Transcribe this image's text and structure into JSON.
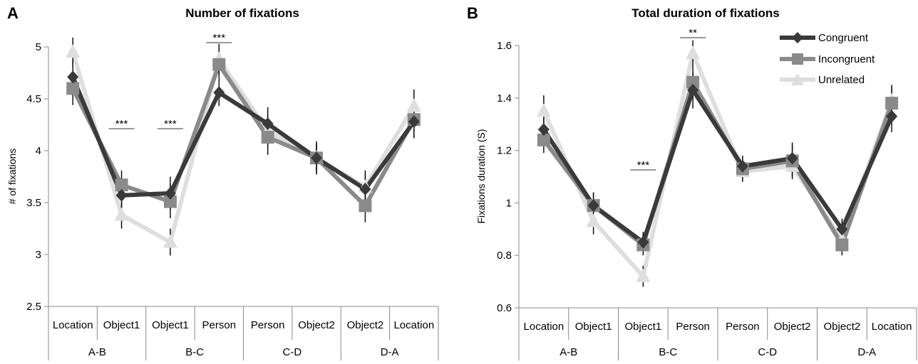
{
  "chart_data": [
    {
      "type": "line",
      "panel": "A",
      "title": "Number of fixations",
      "ylabel": "# of fixations",
      "xlabel": "",
      "ylim": [
        2.5,
        5
      ],
      "yticks": [
        "2.5",
        "3",
        "3.5",
        "4",
        "4.5",
        "5"
      ],
      "ytick_values": [
        2.5,
        3,
        3.5,
        4,
        4.5,
        5
      ],
      "categories": [
        "Location",
        "Object1",
        "Object1",
        "Person",
        "Person",
        "Object2",
        "Object2",
        "Location"
      ],
      "groups": [
        "A-B",
        "B-C",
        "C-D",
        "D-A"
      ],
      "series": [
        {
          "name": "Congruent",
          "color": "#3a3a3a",
          "marker": "diamond",
          "values": [
            4.71,
            3.57,
            3.59,
            4.56,
            4.26,
            3.93,
            3.63,
            4.28
          ],
          "errors": [
            0.17,
            0.14,
            0.16,
            0.13,
            0.16,
            0.12,
            0.15,
            0.16
          ]
        },
        {
          "name": "Incongruent",
          "color": "#8a8a8a",
          "marker": "square",
          "values": [
            4.6,
            3.67,
            3.51,
            4.83,
            4.13,
            3.93,
            3.47,
            4.3
          ],
          "errors": [
            0.16,
            0.14,
            0.16,
            0.14,
            0.17,
            0.16,
            0.16,
            0.17
          ]
        },
        {
          "name": "Unrelated",
          "color": "#dedede",
          "marker": "triangle",
          "values": [
            4.95,
            3.38,
            3.12,
            4.88,
            4.19,
            3.93,
            3.65,
            4.43
          ],
          "errors": [
            0.14,
            0.13,
            0.13,
            0.15,
            0.16,
            0.14,
            0.16,
            0.16
          ]
        }
      ],
      "annotations": [
        {
          "text": "***",
          "between": [
            1,
            1
          ]
        },
        {
          "text": "***",
          "between": [
            2,
            2
          ]
        },
        {
          "text": "***",
          "between": [
            3,
            3
          ]
        }
      ],
      "grid": false,
      "legend": "none"
    },
    {
      "type": "line",
      "panel": "B",
      "title": "Total duration of fixations",
      "ylabel": "Fixations  duration (S)",
      "xlabel": "",
      "ylim": [
        0.6,
        1.6
      ],
      "yticks": [
        "0.6",
        "0.8",
        "1",
        "1.2",
        "1.4",
        "1.6"
      ],
      "ytick_values": [
        0.6,
        0.8,
        1.0,
        1.2,
        1.4,
        1.6
      ],
      "categories": [
        "Location",
        "Object1",
        "Object1",
        "Person",
        "Person",
        "Object2",
        "Object2",
        "Location"
      ],
      "groups": [
        "A-B",
        "B-C",
        "C-D",
        "D-A"
      ],
      "series": [
        {
          "name": "Congruent",
          "color": "#3a3a3a",
          "marker": "diamond",
          "values": [
            1.28,
            0.99,
            0.85,
            1.43,
            1.14,
            1.17,
            0.9,
            1.33
          ],
          "errors": [
            0.06,
            0.05,
            0.04,
            0.07,
            0.04,
            0.06,
            0.04,
            0.06
          ]
        },
        {
          "name": "Incongruent",
          "color": "#8a8a8a",
          "marker": "square",
          "values": [
            1.24,
            0.99,
            0.84,
            1.46,
            1.13,
            1.16,
            0.84,
            1.38
          ],
          "errors": [
            0.05,
            0.05,
            0.04,
            0.06,
            0.04,
            0.06,
            0.04,
            0.06
          ]
        },
        {
          "name": "Unrelated",
          "color": "#dedede",
          "marker": "triangle",
          "values": [
            1.35,
            0.93,
            0.72,
            1.57,
            1.12,
            1.14,
            0.86,
            1.39
          ],
          "errors": [
            0.06,
            0.05,
            0.04,
            0.05,
            0.04,
            0.05,
            0.04,
            0.06
          ]
        }
      ],
      "annotations": [
        {
          "text": "***",
          "between": [
            2,
            2
          ]
        },
        {
          "text": "**",
          "between": [
            3,
            3
          ]
        }
      ],
      "grid": false,
      "legend": "top-right"
    }
  ]
}
